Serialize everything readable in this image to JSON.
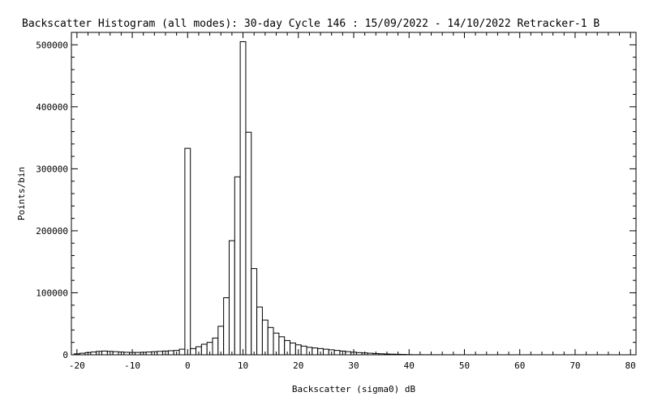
{
  "chart_data": {
    "type": "bar",
    "title": "Backscatter Histogram (all modes): 30-day Cycle 146 : 15/09/2022 - 14/10/2022 Retracker-1 B",
    "xlabel": "Backscatter (sigma0) dB",
    "ylabel": "Points/bin",
    "xlim": [
      -21,
      81
    ],
    "ylim": [
      0,
      520000
    ],
    "bin_width": 1,
    "x_ticks": [
      -20,
      -10,
      0,
      10,
      20,
      30,
      40,
      50,
      60,
      70,
      80
    ],
    "x_tick_labels": [
      "-20",
      "-10",
      "0",
      "10",
      "20",
      "30",
      "40",
      "50",
      "60",
      "70",
      "80"
    ],
    "y_ticks": [
      0,
      100000,
      200000,
      300000,
      400000,
      500000
    ],
    "y_tick_labels": [
      "0",
      "100000",
      "200000",
      "300000",
      "400000",
      "500000"
    ],
    "grid": false,
    "bins": [
      -20,
      -19,
      -18,
      -17,
      -16,
      -15,
      -14,
      -13,
      -12,
      -11,
      -10,
      -9,
      -8,
      -7,
      -6,
      -5,
      -4,
      -3,
      -2,
      -1,
      0,
      1,
      2,
      3,
      4,
      5,
      6,
      7,
      8,
      9,
      10,
      11,
      12,
      13,
      14,
      15,
      16,
      17,
      18,
      19,
      20,
      21,
      22,
      23,
      24,
      25,
      26,
      27,
      28,
      29,
      30,
      31,
      32,
      33,
      34,
      35,
      36,
      37,
      38,
      39,
      40,
      41,
      42,
      43,
      44,
      45,
      46,
      47,
      48,
      49,
      50,
      51,
      52,
      53,
      54,
      55,
      56,
      57,
      58,
      59,
      60,
      61,
      62,
      63,
      64,
      65,
      66,
      67,
      68,
      69,
      70,
      71,
      72,
      73,
      74,
      75,
      76,
      77,
      78,
      79,
      80
    ],
    "values": [
      1500,
      2500,
      3500,
      4500,
      5500,
      6000,
      5500,
      5000,
      4500,
      4000,
      3800,
      3800,
      4000,
      4500,
      5000,
      5500,
      6000,
      6500,
      7000,
      9000,
      333000,
      10000,
      13000,
      17000,
      20000,
      27000,
      46000,
      92000,
      184000,
      287000,
      505000,
      359000,
      139000,
      77000,
      56000,
      44000,
      35000,
      29000,
      23000,
      19000,
      16000,
      14000,
      12000,
      11000,
      10000,
      9000,
      8000,
      7000,
      6000,
      5000,
      4200,
      3500,
      3000,
      2500,
      2000,
      1600,
      1300,
      1000,
      800,
      600,
      300,
      150,
      120,
      100,
      90,
      80,
      70,
      60,
      50,
      40,
      30,
      30,
      25,
      20,
      20,
      15,
      15,
      10,
      10,
      10,
      10,
      10,
      10,
      10,
      10,
      10,
      10,
      10,
      10,
      10,
      10,
      10,
      10,
      10,
      10,
      10,
      10,
      10,
      10,
      10,
      10
    ]
  }
}
